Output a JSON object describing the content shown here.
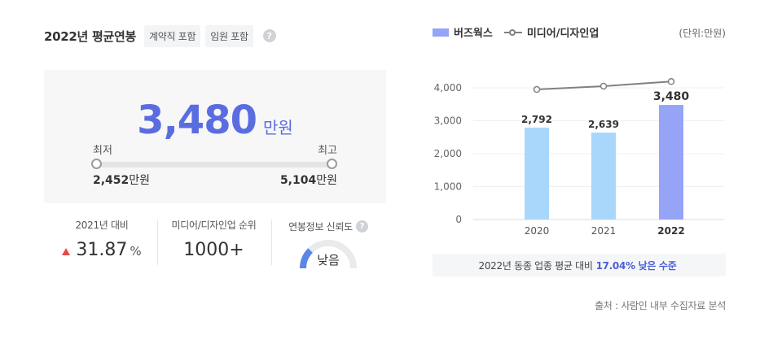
{
  "header": {
    "title": "2022년 평균연봉",
    "tags": [
      "계약직 포함",
      "임원 포함"
    ],
    "help": "?"
  },
  "salary": {
    "average": "3,480",
    "unit": "만원",
    "min_label": "최저",
    "max_label": "최고",
    "min_value": "2,452",
    "max_value": "5,104",
    "value_unit": "만원"
  },
  "stats": {
    "yoy_caption": "2021년 대비",
    "yoy_value": "31.87",
    "yoy_unit": "%",
    "rank_caption": "미디어/디자인업 순위",
    "rank_value": "1000+",
    "reliability_caption": "연봉정보 신뢰도",
    "reliability_value": "낮음",
    "reliability_level": 0.25
  },
  "legend": {
    "company": "버즈웍스",
    "industry": "미디어/디자인업",
    "unit_note": "(단위:만원)"
  },
  "colors": {
    "accent": "#5a6de0",
    "bar_past": "#a9d7fb",
    "bar_current": "#96a4f7",
    "line": "#7e8186",
    "up": "#e5484d"
  },
  "chart_data": {
    "type": "bar",
    "categories": [
      "2020",
      "2021",
      "2022"
    ],
    "series": [
      {
        "name": "버즈웍스",
        "values": [
          2792,
          2639,
          3480
        ],
        "labels": [
          "2,792",
          "2,639",
          "3,480"
        ]
      },
      {
        "name": "미디어/디자인업",
        "type": "line",
        "values": [
          3950,
          4050,
          4190
        ]
      }
    ],
    "yticks": [
      "0",
      "1,000",
      "2,000",
      "3,000",
      "4,000"
    ],
    "ylim": [
      0,
      4000
    ],
    "grid": true
  },
  "footer": {
    "prefix": "2022년 동종 업종 평균 대비",
    "highlight": "17.04% 낮은 수준",
    "source": "출처 : 사람인 내부 수집자료 분석"
  }
}
